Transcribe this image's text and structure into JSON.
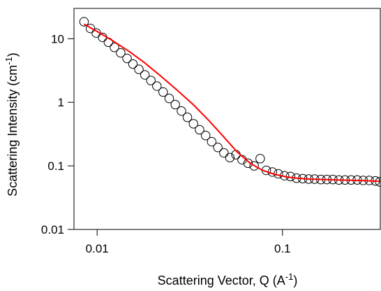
{
  "chart_data": {
    "type": "scatter",
    "xlabel": {
      "main": "Scattering Vector, Q (A",
      "sup": "-1",
      "close": ")"
    },
    "ylabel": {
      "main": "Scattering Intensity (cm",
      "sup": "-1",
      "close": ")"
    },
    "x_scale": "log",
    "y_scale": "log",
    "xlim": [
      0.0075,
      0.34
    ],
    "ylim": [
      0.01,
      30
    ],
    "x_ticks": [
      {
        "value": 0.01,
        "label": "0.01"
      },
      {
        "value": 0.1,
        "label": "0.1"
      }
    ],
    "y_ticks": [
      {
        "value": 0.01,
        "label": "0.01"
      },
      {
        "value": 0.1,
        "label": "0.1"
      },
      {
        "value": 1,
        "label": "1"
      },
      {
        "value": 10,
        "label": "10"
      }
    ],
    "grid": false,
    "legend": "none",
    "series": [
      {
        "kind": "markers",
        "marker": "open-circle",
        "color": "#000000",
        "x": [
          0.0085,
          0.0092,
          0.0099,
          0.0107,
          0.0115,
          0.0124,
          0.0134,
          0.0145,
          0.0156,
          0.0168,
          0.0181,
          0.0195,
          0.021,
          0.0227,
          0.0245,
          0.0264,
          0.0285,
          0.0307,
          0.0331,
          0.0357,
          0.0385,
          0.0415,
          0.0448,
          0.0483,
          0.052,
          0.0561,
          0.0605,
          0.0652,
          0.0703,
          0.0758,
          0.0818,
          0.0882,
          0.095,
          0.1025,
          0.1105,
          0.119,
          0.1285,
          0.1385,
          0.149,
          0.161,
          0.1735,
          0.187,
          0.2015,
          0.2175,
          0.2345,
          0.253,
          0.2725,
          0.294,
          0.317,
          0.335
        ],
        "y": [
          18.5,
          14.5,
          12.3,
          10.5,
          8.8,
          7.3,
          6.0,
          4.9,
          4.0,
          3.3,
          2.7,
          2.2,
          1.8,
          1.45,
          1.15,
          0.92,
          0.73,
          0.58,
          0.46,
          0.37,
          0.3,
          0.24,
          0.195,
          0.16,
          0.135,
          0.15,
          0.125,
          0.11,
          0.1,
          0.13,
          0.085,
          0.08,
          0.075,
          0.07,
          0.068,
          0.064,
          0.063,
          0.062,
          0.062,
          0.061,
          0.061,
          0.061,
          0.06,
          0.06,
          0.06,
          0.06,
          0.059,
          0.059,
          0.058,
          0.056
        ]
      },
      {
        "kind": "fit-line",
        "color": "#ff0000",
        "x": [
          0.0085,
          0.01,
          0.012,
          0.015,
          0.018,
          0.022,
          0.027,
          0.033,
          0.04,
          0.048,
          0.057,
          0.067,
          0.078,
          0.09,
          0.105,
          0.12,
          0.14,
          0.165,
          0.2,
          0.25,
          0.3,
          0.335
        ],
        "y": [
          17.0,
          13.0,
          9.5,
          6.2,
          4.2,
          2.6,
          1.55,
          0.92,
          0.52,
          0.29,
          0.165,
          0.11,
          0.085,
          0.074,
          0.067,
          0.064,
          0.062,
          0.061,
          0.06,
          0.059,
          0.058,
          0.057
        ]
      }
    ]
  }
}
